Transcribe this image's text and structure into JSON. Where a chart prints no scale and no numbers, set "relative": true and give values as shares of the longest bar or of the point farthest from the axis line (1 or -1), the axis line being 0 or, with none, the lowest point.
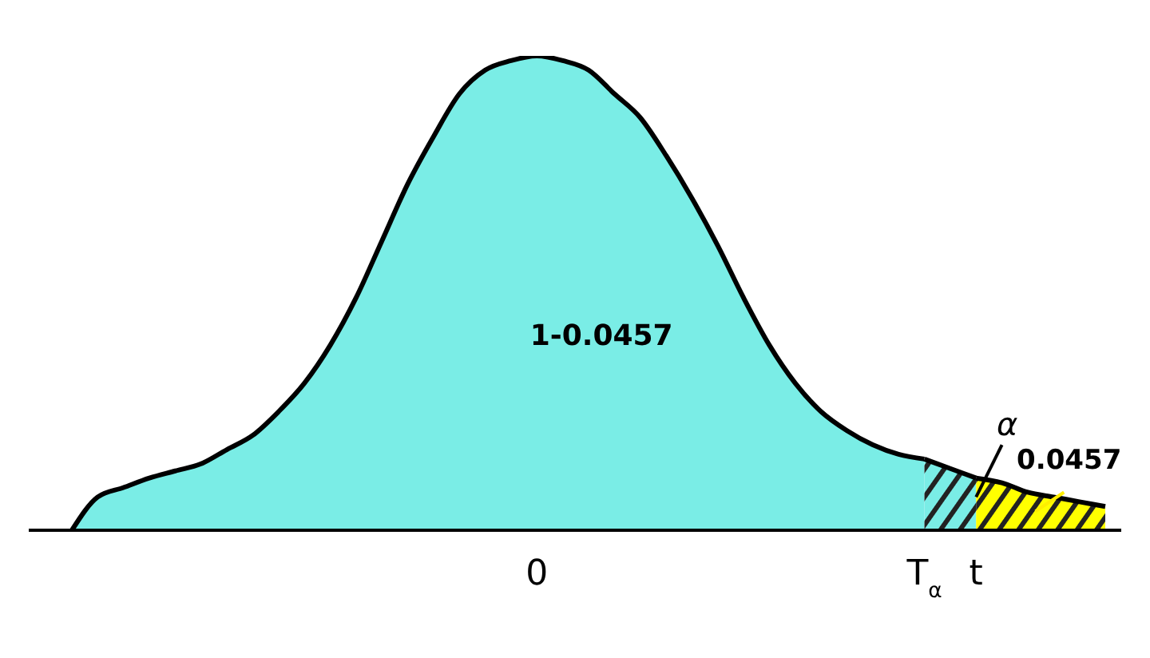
{
  "chart_data": {
    "type": "area",
    "relative": true,
    "categories": [
      null,
      null,
      null,
      null,
      null,
      null,
      null,
      null,
      null,
      null,
      null,
      null,
      null,
      null,
      null,
      null,
      null,
      null,
      "0",
      null,
      null,
      null,
      null,
      null,
      null,
      null,
      null,
      null,
      null,
      null,
      null,
      null,
      null,
      "T$_{α}$",
      null,
      "t",
      null,
      null,
      null,
      null,
      null
    ],
    "series": [
      {
        "color": "#7aede6",
        "values": [
          0,
          0.07,
          0.09,
          0.11,
          0.125,
          0.14,
          0.17,
          0.2,
          0.25,
          0.31,
          0.39,
          0.49,
          0.61,
          0.73,
          0.83,
          0.92,
          0.97,
          0.99,
          1,
          0.99,
          0.97,
          0.92,
          0.87,
          0.79,
          0.7,
          0.6,
          0.49,
          0.39,
          0.31,
          0.25,
          0.21,
          0.18,
          0.16,
          0.15,
          null,
          null,
          null,
          null,
          null,
          null,
          null
        ]
      },
      {
        "color": "#7aede6",
        "values": [
          null,
          null,
          null,
          null,
          null,
          null,
          null,
          null,
          null,
          null,
          null,
          null,
          null,
          null,
          null,
          null,
          null,
          null,
          null,
          null,
          null,
          null,
          null,
          null,
          null,
          null,
          null,
          null,
          null,
          null,
          null,
          null,
          null,
          0.15,
          0.13,
          0.11,
          null,
          null,
          null,
          null,
          null
        ]
      },
      {
        "color": "#ffff00",
        "values": [
          null,
          null,
          null,
          null,
          null,
          null,
          null,
          null,
          null,
          null,
          null,
          null,
          null,
          null,
          null,
          null,
          null,
          null,
          null,
          null,
          null,
          null,
          null,
          null,
          null,
          null,
          null,
          null,
          null,
          null,
          null,
          null,
          null,
          null,
          null,
          0.11,
          0.1,
          0.08,
          0.07,
          0.06,
          0.05
        ]
      }
    ],
    "annotations": [
      "1-0.0457",
      "α",
      "0.0457"
    ]
  }
}
